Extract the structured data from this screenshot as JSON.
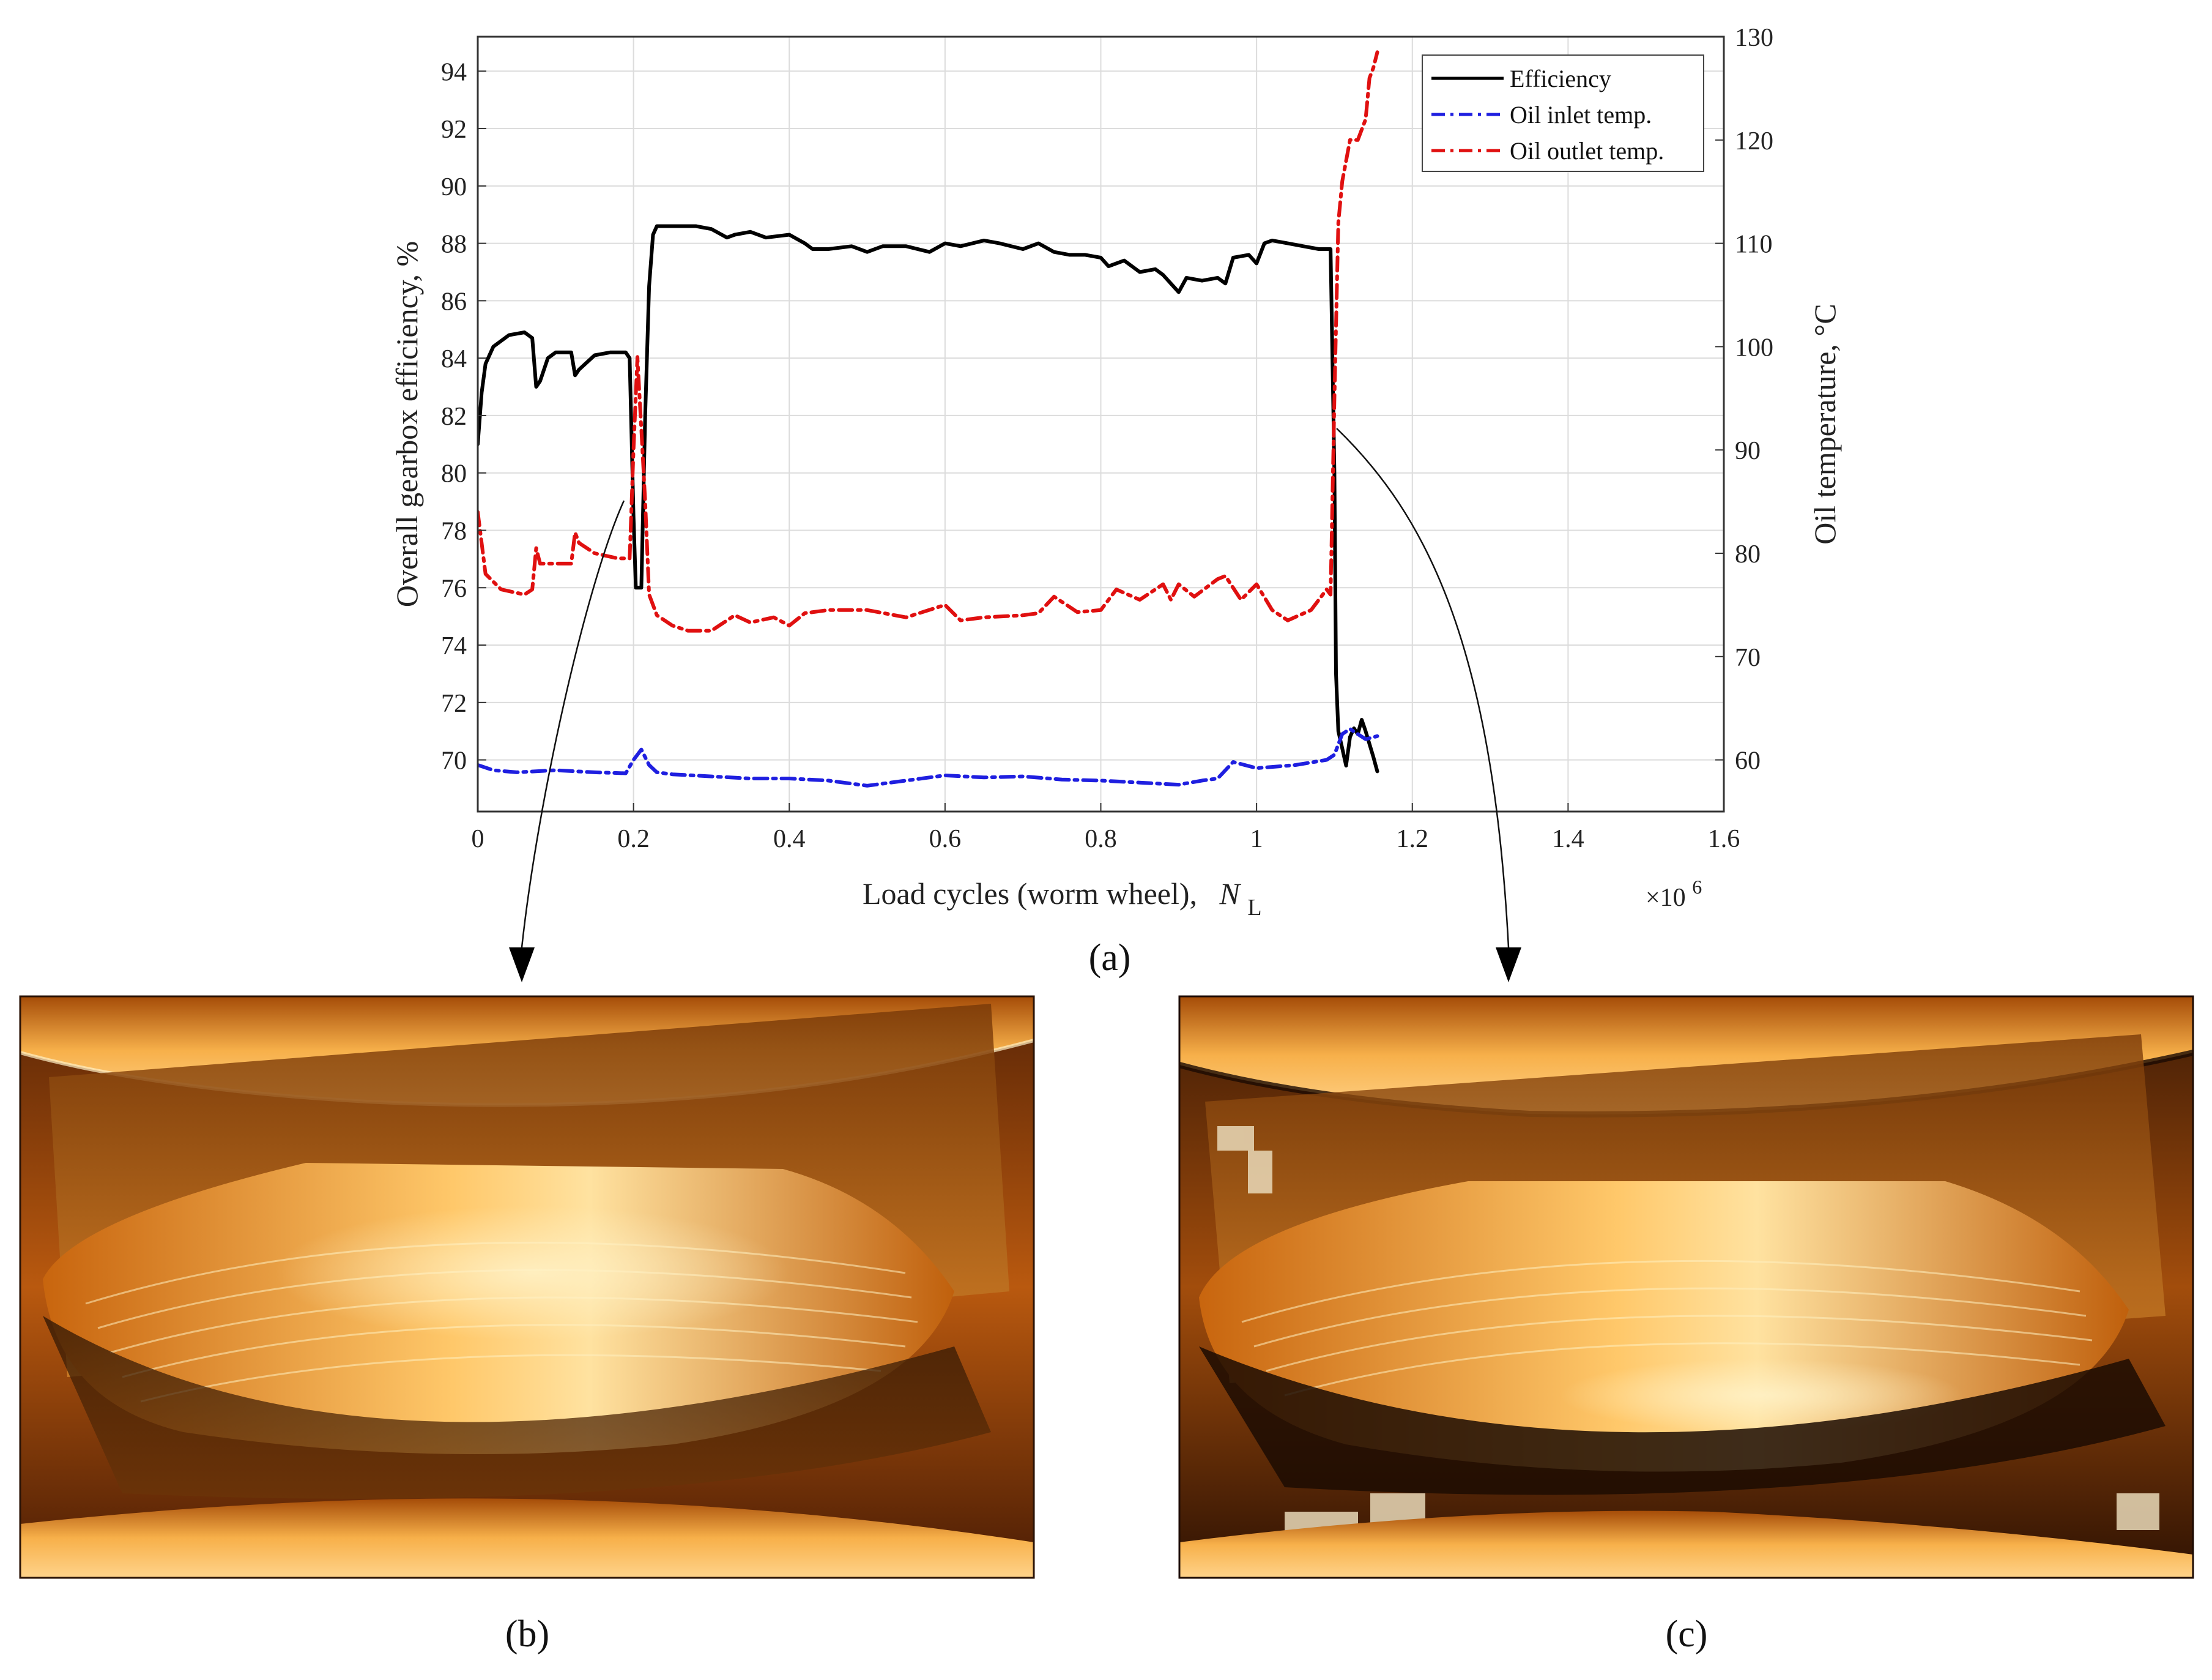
{
  "chart_data": {
    "type": "line",
    "xlabel": "Load cycles (worm wheel),",
    "xlabel_symbol": "N",
    "xlabel_subscript": "L",
    "x_multiplier": "×10",
    "x_multiplier_exp": "6",
    "ylabel_left": "Overall gearbox efficiency, %",
    "ylabel_right": "Oil temperature, °C",
    "xlim": [
      0,
      1.6
    ],
    "ylim_left": [
      68.2,
      95.2
    ],
    "ylim_right": [
      55,
      130
    ],
    "x_ticks": [
      "0",
      "0.2",
      "0.4",
      "0.6",
      "0.8",
      "1",
      "1.2",
      "1.4",
      "1.6"
    ],
    "y_left_ticks": [
      "70",
      "72",
      "74",
      "76",
      "78",
      "80",
      "82",
      "84",
      "86",
      "88",
      "90",
      "92",
      "94"
    ],
    "y_right_ticks": [
      "60",
      "70",
      "80",
      "90",
      "100",
      "110",
      "120",
      "130"
    ],
    "grid": true,
    "legend_position": "top-right",
    "series": [
      {
        "name": "Efficiency",
        "axis": "left",
        "color": "#000000",
        "style": "solid",
        "x": [
          0,
          0.005,
          0.01,
          0.02,
          0.04,
          0.06,
          0.07,
          0.075,
          0.08,
          0.09,
          0.1,
          0.12,
          0.125,
          0.13,
          0.15,
          0.17,
          0.19,
          0.195,
          0.2,
          0.203,
          0.205,
          0.21,
          0.215,
          0.22,
          0.225,
          0.23,
          0.25,
          0.28,
          0.3,
          0.32,
          0.33,
          0.35,
          0.37,
          0.4,
          0.42,
          0.43,
          0.45,
          0.48,
          0.5,
          0.52,
          0.55,
          0.58,
          0.6,
          0.62,
          0.65,
          0.67,
          0.7,
          0.72,
          0.74,
          0.76,
          0.78,
          0.8,
          0.81,
          0.83,
          0.85,
          0.87,
          0.88,
          0.9,
          0.91,
          0.93,
          0.95,
          0.96,
          0.97,
          0.99,
          1.0,
          1.01,
          1.02,
          1.04,
          1.06,
          1.08,
          1.095,
          1.1,
          1.102,
          1.105,
          1.11,
          1.115,
          1.12,
          1.125,
          1.13,
          1.135,
          1.14,
          1.15,
          1.155
        ],
        "values": [
          81.0,
          82.8,
          83.8,
          84.4,
          84.8,
          84.9,
          84.7,
          83.0,
          83.2,
          84.0,
          84.2,
          84.2,
          83.4,
          83.6,
          84.1,
          84.2,
          84.2,
          84.0,
          78.5,
          76.0,
          76.0,
          76.0,
          82.0,
          86.5,
          88.3,
          88.6,
          88.6,
          88.6,
          88.5,
          88.2,
          88.3,
          88.4,
          88.2,
          88.3,
          88.0,
          87.8,
          87.8,
          87.9,
          87.7,
          87.9,
          87.9,
          87.7,
          88.0,
          87.9,
          88.1,
          88.0,
          87.8,
          88.0,
          87.7,
          87.6,
          87.6,
          87.5,
          87.2,
          87.4,
          87.0,
          87.1,
          86.9,
          86.3,
          86.8,
          86.7,
          86.8,
          86.6,
          87.5,
          87.6,
          87.3,
          88.0,
          88.1,
          88.0,
          87.9,
          87.8,
          87.8,
          80.0,
          73.0,
          71.0,
          70.4,
          69.8,
          70.8,
          71.1,
          70.9,
          71.4,
          71.0,
          70.1,
          69.6
        ]
      },
      {
        "name": "Oil inlet temp.",
        "axis": "right",
        "color": "#1f1fe0",
        "style": "dash-dot",
        "x": [
          0,
          0.02,
          0.05,
          0.1,
          0.15,
          0.19,
          0.2,
          0.21,
          0.22,
          0.23,
          0.25,
          0.3,
          0.35,
          0.4,
          0.45,
          0.5,
          0.55,
          0.6,
          0.65,
          0.7,
          0.75,
          0.8,
          0.85,
          0.9,
          0.93,
          0.95,
          0.97,
          1.0,
          1.05,
          1.09,
          1.1,
          1.11,
          1.12,
          1.13,
          1.14,
          1.15,
          1.155
        ],
        "values": [
          59.5,
          59.0,
          58.8,
          59.0,
          58.8,
          58.7,
          60.0,
          61.0,
          59.5,
          58.8,
          58.6,
          58.4,
          58.2,
          58.2,
          58.0,
          57.5,
          58.0,
          58.5,
          58.3,
          58.4,
          58.1,
          58.0,
          57.8,
          57.6,
          58.0,
          58.2,
          59.8,
          59.2,
          59.5,
          60.0,
          60.5,
          62.5,
          63.0,
          62.5,
          62.0,
          62.2,
          62.3
        ]
      },
      {
        "name": "Oil outlet temp.",
        "axis": "right",
        "color": "#e01010",
        "style": "dash-dot",
        "x": [
          0,
          0.01,
          0.03,
          0.06,
          0.07,
          0.075,
          0.08,
          0.09,
          0.12,
          0.125,
          0.13,
          0.15,
          0.18,
          0.195,
          0.2,
          0.205,
          0.21,
          0.215,
          0.22,
          0.23,
          0.25,
          0.27,
          0.3,
          0.33,
          0.35,
          0.38,
          0.4,
          0.42,
          0.45,
          0.5,
          0.55,
          0.6,
          0.62,
          0.65,
          0.7,
          0.72,
          0.74,
          0.77,
          0.8,
          0.82,
          0.85,
          0.88,
          0.89,
          0.9,
          0.92,
          0.95,
          0.96,
          0.98,
          1.0,
          1.02,
          1.04,
          1.07,
          1.09,
          1.095,
          1.1,
          1.105,
          1.11,
          1.12,
          1.13,
          1.14,
          1.145,
          1.15,
          1.155
        ],
        "values": [
          84.0,
          78.0,
          76.5,
          76.0,
          76.5,
          80.5,
          79.0,
          79.0,
          79.0,
          82.0,
          81.0,
          80.0,
          79.5,
          79.5,
          90.0,
          99.0,
          92.0,
          85.0,
          76.0,
          74.0,
          73.0,
          72.5,
          72.5,
          74.0,
          73.3,
          73.8,
          73.0,
          74.2,
          74.5,
          74.5,
          73.8,
          75.0,
          73.5,
          73.8,
          74.0,
          74.2,
          75.8,
          74.3,
          74.5,
          76.5,
          75.5,
          77.0,
          75.5,
          77.0,
          75.8,
          77.5,
          77.8,
          75.5,
          77.0,
          74.5,
          73.5,
          74.5,
          76.5,
          76.0,
          95.0,
          112.0,
          116.0,
          120.0,
          120.0,
          122.0,
          126.0,
          127.0,
          128.5
        ]
      }
    ]
  },
  "labels": {
    "a": "(a)",
    "b": "(b)",
    "c": "(c)"
  },
  "colors": {
    "photo_bright": "#ffd580",
    "photo_mid": "#e8891e",
    "photo_dark": "#4a1e04"
  }
}
